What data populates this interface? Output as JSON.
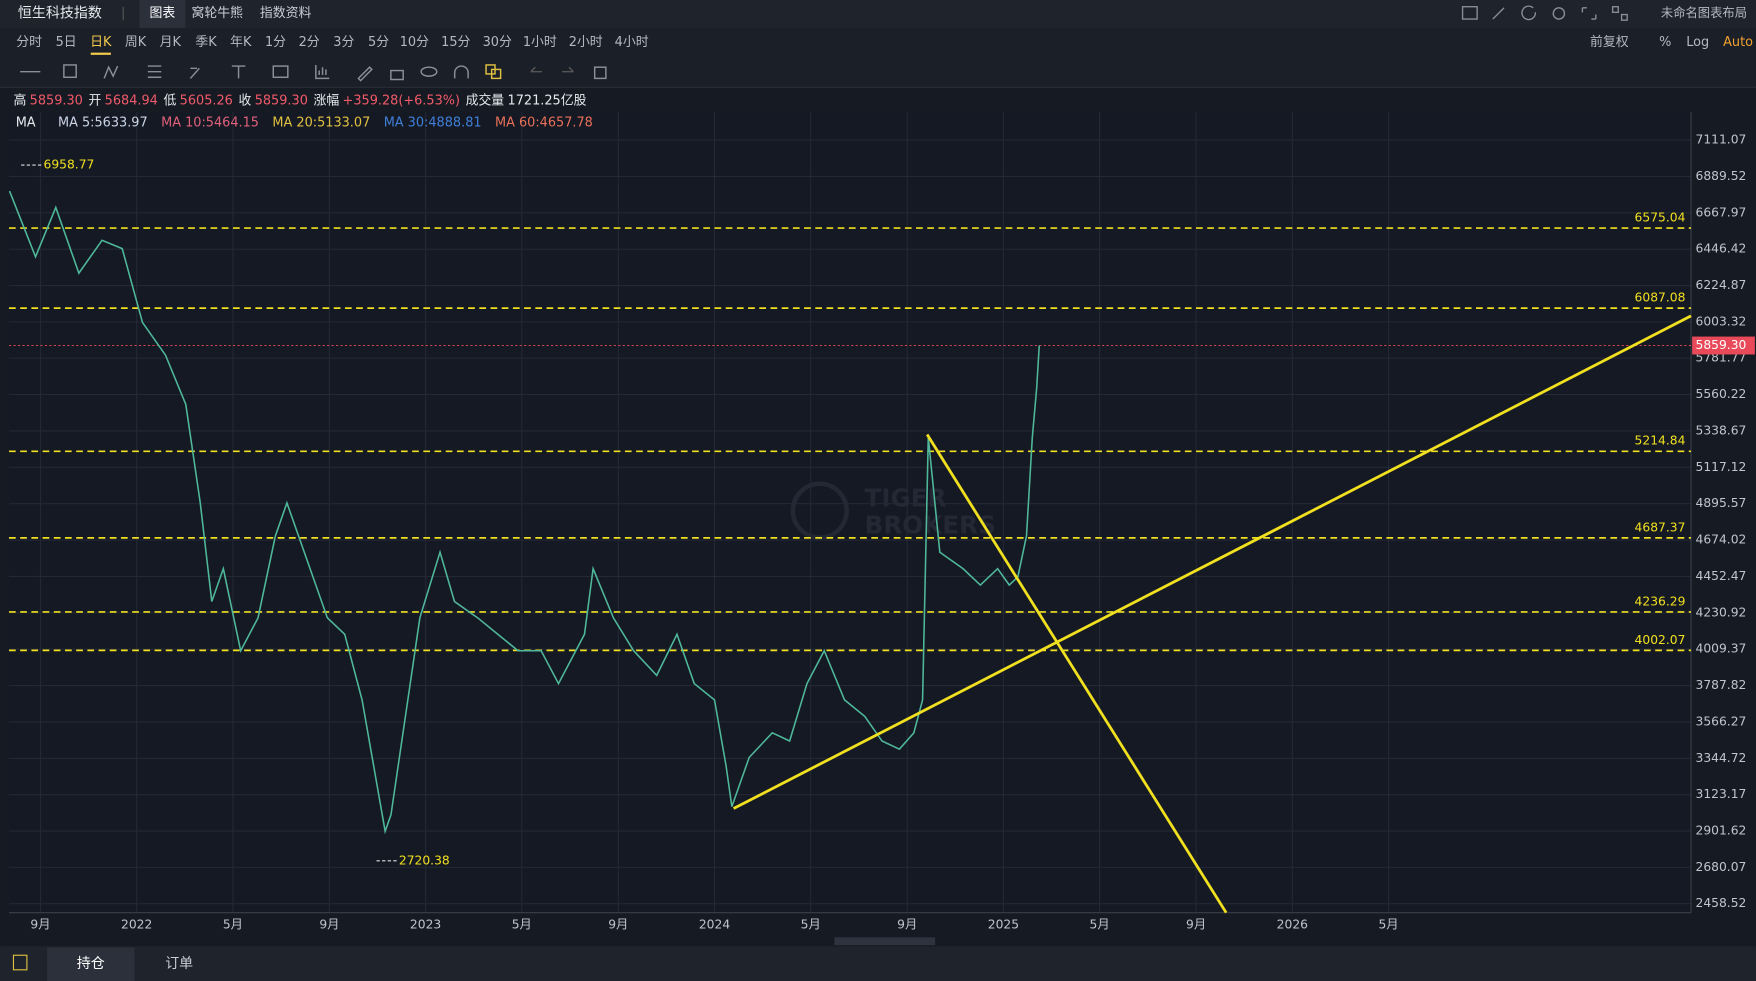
{
  "header": {
    "title": "恒生科技指数",
    "tabs": [
      "图表",
      "窝轮牛熊",
      "指数资料"
    ],
    "active_tab_index": 0,
    "layout_name": "未命名图表布局"
  },
  "periods": [
    "分时",
    "5日",
    "日K",
    "周K",
    "月K",
    "季K",
    "年K",
    "1分",
    "2分",
    "3分",
    "5分",
    "10分",
    "15分",
    "30分",
    "1小时",
    "2小时",
    "4小时"
  ],
  "active_period_index": 2,
  "settings": [
    "前复权",
    "%",
    "Log",
    "Auto"
  ],
  "quote": [
    {
      "label": "高",
      "value": "5859.30"
    },
    {
      "label": "开",
      "value": "5684.94"
    },
    {
      "label": "低",
      "value": "5605.26"
    },
    {
      "label": "收",
      "value": "5859.30"
    },
    {
      "label": "涨幅",
      "value": "+359.28(+6.53%)"
    },
    {
      "label": "成交量",
      "value": "1721.25亿股"
    }
  ],
  "ma": {
    "label": "MA",
    "items": [
      {
        "text": "MA  5:5633.97",
        "color": "#c9d4e6"
      },
      {
        "text": "MA  10:5464.15",
        "color": "#e0607a"
      },
      {
        "text": "MA  20:5133.07",
        "color": "#e0c040"
      },
      {
        "text": "MA  30:4888.81",
        "color": "#3f7fd8"
      },
      {
        "text": "MA  60:4657.78",
        "color": "#e8705a"
      }
    ]
  },
  "watermark": [
    "TIGER",
    "BROKERS"
  ],
  "chart_data": {
    "type": "line",
    "color": "#4fb89a",
    "x": [
      2021.56,
      2021.65,
      2021.72,
      2021.8,
      2021.88,
      2021.95,
      2022.02,
      2022.1,
      2022.17,
      2022.22,
      2022.26,
      2022.3,
      2022.36,
      2022.42,
      2022.48,
      2022.52,
      2022.58,
      2022.66,
      2022.72,
      2022.78,
      2022.82,
      2022.86,
      2022.88,
      2022.93,
      2022.98,
      2023.05,
      2023.1,
      2023.18,
      2023.25,
      2023.32,
      2023.4,
      2023.46,
      2023.55,
      2023.58,
      2023.65,
      2023.72,
      2023.8,
      2023.87,
      2023.93,
      2024.0,
      2024.04,
      2024.06,
      2024.12,
      2024.2,
      2024.26,
      2024.32,
      2024.38,
      2024.45,
      2024.52,
      2024.58,
      2024.64,
      2024.69,
      2024.72,
      2024.74,
      2024.78,
      2024.86,
      2024.92,
      2024.98,
      2025.02,
      2025.05,
      2025.08,
      2025.1,
      2025.115,
      2025.124
    ],
    "values": [
      6800,
      6400,
      6700,
      6300,
      6500,
      6450,
      6000,
      5800,
      5500,
      4900,
      4300,
      4500,
      4000,
      4200,
      4700,
      4900,
      4600,
      4200,
      4100,
      3700,
      3300,
      2900,
      3000,
      3600,
      4200,
      4600,
      4300,
      4200,
      4100,
      4000,
      4000,
      3800,
      4100,
      4500,
      4200,
      4000,
      3850,
      4100,
      3800,
      3700,
      3300,
      3050,
      3350,
      3500,
      3450,
      3800,
      4000,
      3700,
      3600,
      3450,
      3400,
      3500,
      3700,
      5300,
      4600,
      4500,
      4400,
      4500,
      4400,
      4450,
      4700,
      5300,
      5600,
      5859.3
    ],
    "xlim": [
      2021.558,
      2027.38
    ],
    "ylim": [
      2404,
      7282
    ],
    "xticks": [
      {
        "value": 2021.667,
        "label": "9月"
      },
      {
        "value": 2022,
        "label": "2022"
      },
      {
        "value": 2022.333,
        "label": "5月"
      },
      {
        "value": 2022.667,
        "label": "9月"
      },
      {
        "value": 2023,
        "label": "2023"
      },
      {
        "value": 2023.333,
        "label": "5月"
      },
      {
        "value": 2023.667,
        "label": "9月"
      },
      {
        "value": 2024,
        "label": "2024"
      },
      {
        "value": 2024.333,
        "label": "5月"
      },
      {
        "value": 2024.667,
        "label": "9月"
      },
      {
        "value": 2025,
        "label": "2025"
      },
      {
        "value": 2025.333,
        "label": "5月"
      },
      {
        "value": 2025.667,
        "label": "9月"
      },
      {
        "value": 2026,
        "label": "2026"
      },
      {
        "value": 2026.333,
        "label": "5月"
      }
    ],
    "yticks": [
      7111.07,
      6889.52,
      6667.97,
      6446.42,
      6224.87,
      6003.32,
      5781.77,
      5560.22,
      5338.67,
      5117.12,
      4895.57,
      4674.02,
      4452.47,
      4230.92,
      4009.37,
      3787.82,
      3566.27,
      3344.72,
      3123.17,
      2901.62,
      2680.07,
      2458.52
    ],
    "grid": true,
    "levels": [
      6575.04,
      6087.08,
      5214.84,
      4687.37,
      4236.29,
      4002.07
    ],
    "level_color": "#f0e020",
    "extremes": [
      {
        "x": 2021.6,
        "value": 6958.77
      },
      {
        "x": 2022.83,
        "value": 2720.38
      }
    ],
    "last_price": {
      "value": 5859.3,
      "label": "5859.30",
      "color": "#e84a5a"
    },
    "trend_lines": [
      {
        "from": [
          2024.066,
          3038.5
        ],
        "to": [
          2027.38,
          6040
        ]
      },
      {
        "from": [
          2024.736,
          5317
        ],
        "to": [
          2025.771,
          2404
        ]
      }
    ],
    "trend_color": "#f0e020"
  },
  "bottom_tabs": [
    "持仓",
    "订单"
  ],
  "active_bottom_index": 0
}
